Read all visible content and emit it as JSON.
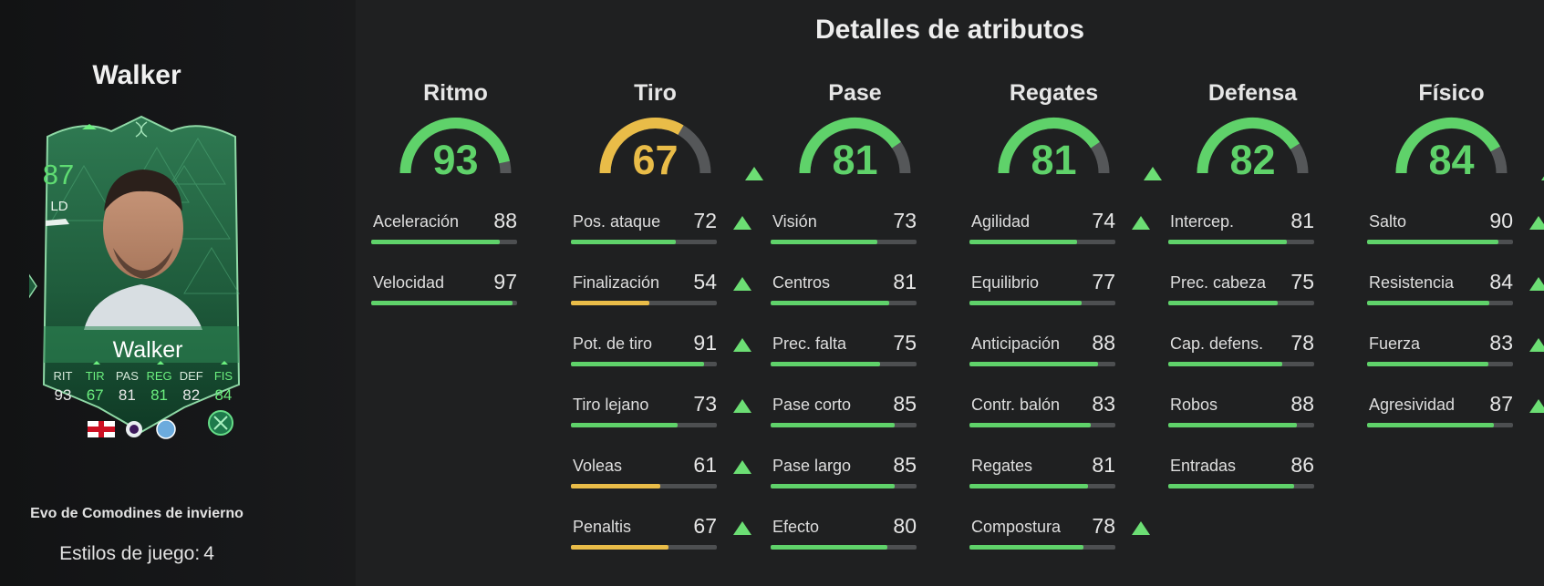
{
  "player": {
    "name_title": "Walker",
    "card": {
      "rating": "87",
      "position": "LD",
      "name": "Walker",
      "stat_labels": [
        "RIT",
        "TIR",
        "PAS",
        "REG",
        "DEF",
        "FIS"
      ],
      "stat_values": [
        "93",
        "67",
        "81",
        "81",
        "82",
        "84"
      ],
      "upgraded_stats": [
        false,
        true,
        false,
        true,
        false,
        true
      ],
      "nation_flag": "england-flag-icon",
      "league": "premier-league-icon",
      "club": "manchester-city-icon"
    },
    "evo_name": "Evo de Comodines de invierno",
    "playstyles_label": "Estilos de juego:",
    "playstyles_count": "4"
  },
  "details": {
    "title": "Detalles de atributos",
    "colors": {
      "high": "#5fd26a",
      "mid": "#e9bc48",
      "track": "#4d4f51",
      "upgrade": "#6cde74"
    },
    "categories": [
      {
        "name": "Ritmo",
        "value": 93,
        "upgraded": false,
        "attributes": [
          {
            "name": "Aceleración",
            "value": 88,
            "upgraded": false
          },
          {
            "name": "Velocidad",
            "value": 97,
            "upgraded": false
          }
        ]
      },
      {
        "name": "Tiro",
        "value": 67,
        "upgraded": true,
        "attributes": [
          {
            "name": "Pos. ataque",
            "value": 72,
            "upgraded": true
          },
          {
            "name": "Finalización",
            "value": 54,
            "upgraded": true
          },
          {
            "name": "Pot. de tiro",
            "value": 91,
            "upgraded": true
          },
          {
            "name": "Tiro lejano",
            "value": 73,
            "upgraded": true
          },
          {
            "name": "Voleas",
            "value": 61,
            "upgraded": true
          },
          {
            "name": "Penaltis",
            "value": 67,
            "upgraded": true
          }
        ]
      },
      {
        "name": "Pase",
        "value": 81,
        "upgraded": false,
        "attributes": [
          {
            "name": "Visión",
            "value": 73,
            "upgraded": false
          },
          {
            "name": "Centros",
            "value": 81,
            "upgraded": false
          },
          {
            "name": "Prec. falta",
            "value": 75,
            "upgraded": false
          },
          {
            "name": "Pase corto",
            "value": 85,
            "upgraded": false
          },
          {
            "name": "Pase largo",
            "value": 85,
            "upgraded": false
          },
          {
            "name": "Efecto",
            "value": 80,
            "upgraded": false
          }
        ]
      },
      {
        "name": "Regates",
        "value": 81,
        "upgraded": true,
        "attributes": [
          {
            "name": "Agilidad",
            "value": 74,
            "upgraded": true
          },
          {
            "name": "Equilibrio",
            "value": 77,
            "upgraded": false
          },
          {
            "name": "Anticipación",
            "value": 88,
            "upgraded": false
          },
          {
            "name": "Contr. balón",
            "value": 83,
            "upgraded": false
          },
          {
            "name": "Regates",
            "value": 81,
            "upgraded": false
          },
          {
            "name": "Compostura",
            "value": 78,
            "upgraded": true
          }
        ]
      },
      {
        "name": "Defensa",
        "value": 82,
        "upgraded": false,
        "attributes": [
          {
            "name": "Intercep.",
            "value": 81,
            "upgraded": false
          },
          {
            "name": "Prec. cabeza",
            "value": 75,
            "upgraded": false
          },
          {
            "name": "Cap. defens.",
            "value": 78,
            "upgraded": false
          },
          {
            "name": "Robos",
            "value": 88,
            "upgraded": false
          },
          {
            "name": "Entradas",
            "value": 86,
            "upgraded": false
          }
        ]
      },
      {
        "name": "Físico",
        "value": 84,
        "upgraded": true,
        "attributes": [
          {
            "name": "Salto",
            "value": 90,
            "upgraded": true
          },
          {
            "name": "Resistencia",
            "value": 84,
            "upgraded": true
          },
          {
            "name": "Fuerza",
            "value": 83,
            "upgraded": true
          },
          {
            "name": "Agresividad",
            "value": 87,
            "upgraded": true
          }
        ]
      }
    ]
  }
}
